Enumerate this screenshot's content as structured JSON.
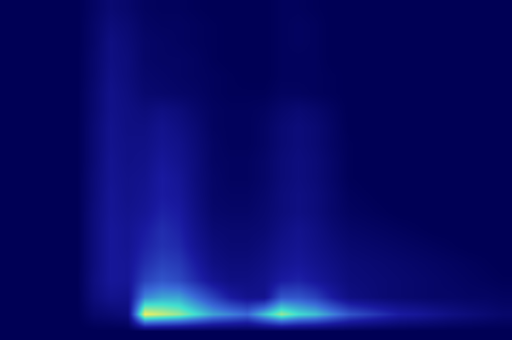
{
  "chart_data": {
    "type": "heatmap",
    "tick_labels": false,
    "color_range": [
      0,
      1
    ],
    "cells": [
      [
        0,
        0,
        0,
        0,
        0,
        0.04,
        0.08,
        0.06,
        0.03,
        0.02,
        0.02,
        0.01,
        0,
        0,
        0,
        0,
        0.02,
        0.02,
        0.01,
        0,
        0,
        0,
        0,
        0,
        0,
        0,
        0,
        0,
        0,
        0
      ],
      [
        0,
        0,
        0,
        0,
        0,
        0.05,
        0.1,
        0.08,
        0.04,
        0.03,
        0.03,
        0.02,
        0.01,
        0,
        0,
        0,
        0.02,
        0.03,
        0.02,
        0,
        0,
        0,
        0,
        0,
        0,
        0,
        0,
        0,
        0,
        0
      ],
      [
        0,
        0,
        0,
        0,
        0,
        0.05,
        0.12,
        0.09,
        0.05,
        0.04,
        0.03,
        0.02,
        0.01,
        0,
        0,
        0,
        0.02,
        0.03,
        0.02,
        0,
        0,
        0,
        0,
        0,
        0,
        0,
        0,
        0,
        0,
        0
      ],
      [
        0,
        0,
        0,
        0,
        0,
        0.06,
        0.12,
        0.1,
        0.05,
        0.04,
        0.04,
        0.03,
        0.01,
        0,
        0,
        0,
        0.02,
        0.02,
        0.02,
        0,
        0,
        0,
        0,
        0,
        0,
        0,
        0,
        0,
        0,
        0
      ],
      [
        0,
        0,
        0,
        0,
        0,
        0.06,
        0.13,
        0.1,
        0.06,
        0.05,
        0.04,
        0.03,
        0.02,
        0.01,
        0,
        0,
        0.02,
        0.02,
        0.02,
        0.01,
        0,
        0,
        0,
        0,
        0,
        0,
        0,
        0,
        0,
        0
      ],
      [
        0,
        0,
        0,
        0,
        0,
        0.07,
        0.14,
        0.11,
        0.07,
        0.06,
        0.05,
        0.04,
        0.02,
        0.01,
        0.01,
        0.01,
        0.03,
        0.03,
        0.02,
        0.01,
        0,
        0,
        0,
        0,
        0,
        0,
        0,
        0,
        0,
        0
      ],
      [
        0,
        0,
        0,
        0,
        0,
        0.07,
        0.14,
        0.12,
        0.1,
        0.12,
        0.1,
        0.06,
        0.03,
        0.02,
        0.02,
        0.03,
        0.06,
        0.08,
        0.06,
        0.03,
        0,
        0,
        0,
        0,
        0,
        0,
        0,
        0,
        0,
        0
      ],
      [
        0,
        0,
        0,
        0,
        0,
        0.08,
        0.15,
        0.12,
        0.12,
        0.15,
        0.12,
        0.08,
        0.03,
        0.02,
        0.02,
        0.04,
        0.08,
        0.1,
        0.08,
        0.04,
        0,
        0,
        0,
        0,
        0,
        0,
        0,
        0,
        0,
        0
      ],
      [
        0,
        0,
        0,
        0,
        0,
        0.08,
        0.15,
        0.13,
        0.13,
        0.16,
        0.14,
        0.09,
        0.04,
        0.02,
        0.02,
        0.04,
        0.08,
        0.1,
        0.08,
        0.04,
        0.01,
        0,
        0,
        0,
        0,
        0,
        0,
        0,
        0,
        0
      ],
      [
        0,
        0,
        0,
        0,
        0,
        0.08,
        0.16,
        0.13,
        0.14,
        0.18,
        0.15,
        0.1,
        0.04,
        0.03,
        0.03,
        0.05,
        0.09,
        0.11,
        0.09,
        0.05,
        0.01,
        0,
        0,
        0,
        0,
        0,
        0,
        0,
        0,
        0
      ],
      [
        0,
        0,
        0,
        0,
        0,
        0.09,
        0.16,
        0.14,
        0.15,
        0.2,
        0.17,
        0.1,
        0.05,
        0.03,
        0.03,
        0.05,
        0.09,
        0.11,
        0.09,
        0.05,
        0.01,
        0,
        0,
        0,
        0,
        0,
        0,
        0,
        0,
        0
      ],
      [
        0,
        0,
        0,
        0,
        0,
        0.09,
        0.17,
        0.14,
        0.16,
        0.2,
        0.18,
        0.11,
        0.05,
        0.04,
        0.04,
        0.06,
        0.1,
        0.12,
        0.1,
        0.06,
        0.02,
        0.01,
        0,
        0,
        0,
        0,
        0,
        0,
        0,
        0
      ],
      [
        0,
        0,
        0,
        0,
        0,
        0.1,
        0.17,
        0.15,
        0.17,
        0.22,
        0.2,
        0.12,
        0.06,
        0.05,
        0.05,
        0.07,
        0.1,
        0.12,
        0.1,
        0.06,
        0.03,
        0.02,
        0.01,
        0,
        0,
        0,
        0,
        0,
        0,
        0
      ],
      [
        0,
        0,
        0,
        0,
        0,
        0.1,
        0.18,
        0.16,
        0.2,
        0.25,
        0.22,
        0.14,
        0.08,
        0.07,
        0.07,
        0.08,
        0.12,
        0.15,
        0.12,
        0.08,
        0.05,
        0.04,
        0.03,
        0.02,
        0.01,
        0,
        0,
        0,
        0,
        0
      ],
      [
        0,
        0,
        0,
        0,
        0,
        0.1,
        0.18,
        0.16,
        0.22,
        0.26,
        0.24,
        0.16,
        0.1,
        0.08,
        0.08,
        0.1,
        0.14,
        0.16,
        0.13,
        0.1,
        0.07,
        0.06,
        0.05,
        0.04,
        0.03,
        0.02,
        0.01,
        0,
        0,
        0
      ],
      [
        0,
        0,
        0,
        0,
        0,
        0.1,
        0.18,
        0.17,
        0.25,
        0.3,
        0.28,
        0.2,
        0.12,
        0.1,
        0.1,
        0.12,
        0.16,
        0.18,
        0.15,
        0.12,
        0.09,
        0.08,
        0.07,
        0.06,
        0.05,
        0.04,
        0.03,
        0.02,
        0.01,
        0
      ],
      [
        0,
        0,
        0,
        0,
        0,
        0.11,
        0.18,
        0.17,
        0.3,
        0.35,
        0.32,
        0.24,
        0.16,
        0.12,
        0.12,
        0.14,
        0.2,
        0.22,
        0.18,
        0.14,
        0.1,
        0.09,
        0.08,
        0.07,
        0.06,
        0.05,
        0.04,
        0.03,
        0.02,
        0.01
      ],
      [
        0,
        0,
        0,
        0,
        0,
        0.1,
        0.15,
        0.14,
        0.45,
        0.5,
        0.5,
        0.4,
        0.3,
        0.2,
        0.15,
        0.15,
        0.35,
        0.35,
        0.3,
        0.2,
        0.12,
        0.1,
        0.08,
        0.07,
        0.06,
        0.05,
        0.05,
        0.04,
        0.04,
        0.03
      ],
      [
        0,
        0,
        0,
        0,
        0,
        0.06,
        0.08,
        0.1,
        0.8,
        0.75,
        0.7,
        0.6,
        0.5,
        0.45,
        0.4,
        0.55,
        0.7,
        0.6,
        0.55,
        0.45,
        0.35,
        0.3,
        0.25,
        0.2,
        0.18,
        0.15,
        0.12,
        0.1,
        0.08,
        0.06
      ],
      [
        0,
        0,
        0,
        0,
        0,
        0,
        0,
        0,
        0,
        0,
        0,
        0,
        0,
        0,
        0,
        0,
        0,
        0,
        0,
        0,
        0,
        0,
        0,
        0,
        0,
        0,
        0,
        0,
        0,
        0
      ]
    ]
  }
}
